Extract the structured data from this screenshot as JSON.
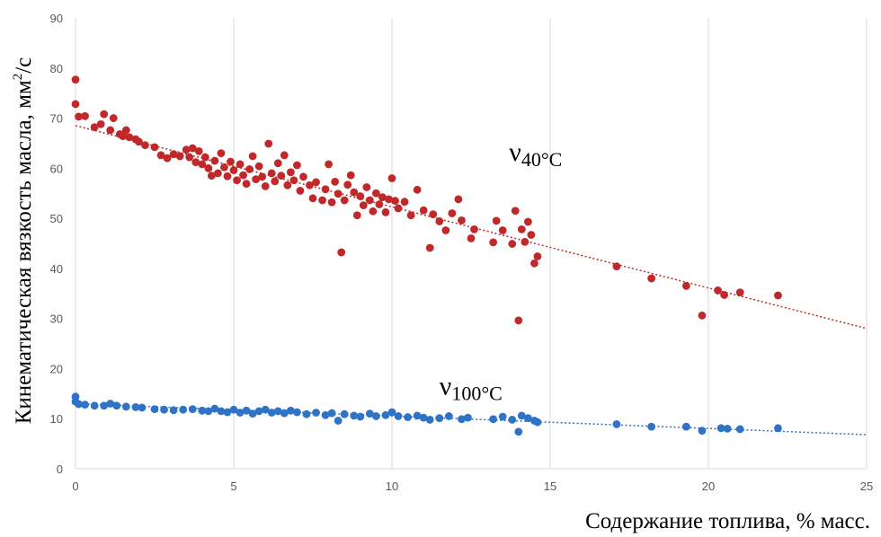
{
  "chart_data": {
    "type": "scatter",
    "title": "",
    "xlabel": "Содержание топлива, % масс.",
    "ylabel_main": "Кинематическая вязкость масла, мм",
    "ylabel_sup": "2",
    "ylabel_tail": "/с",
    "xlim": [
      0,
      25
    ],
    "ylim": [
      0,
      90
    ],
    "x_ticks": [
      0,
      5,
      10,
      15,
      20,
      25
    ],
    "y_ticks": [
      0,
      10,
      20,
      30,
      40,
      50,
      60,
      70,
      80,
      90
    ],
    "grid": "vertical",
    "series": [
      {
        "name": "v40",
        "label_main": "ν",
        "label_sub": "40°C",
        "color": "#c0282a",
        "trendline": {
          "x": [
            0,
            25
          ],
          "y": [
            68.5,
            28.0
          ]
        },
        "points": [
          [
            0.0,
            77.7
          ],
          [
            0.0,
            72.8
          ],
          [
            0.1,
            70.3
          ],
          [
            0.3,
            70.4
          ],
          [
            0.6,
            68.2
          ],
          [
            0.8,
            68.8
          ],
          [
            0.9,
            70.8
          ],
          [
            1.1,
            67.6
          ],
          [
            1.2,
            70.0
          ],
          [
            1.4,
            66.8
          ],
          [
            1.5,
            66.4
          ],
          [
            1.6,
            67.6
          ],
          [
            1.7,
            66.2
          ],
          [
            1.9,
            65.8
          ],
          [
            2.0,
            65.3
          ],
          [
            2.2,
            64.6
          ],
          [
            2.5,
            64.2
          ],
          [
            2.7,
            62.6
          ],
          [
            2.9,
            62.0
          ],
          [
            3.1,
            62.8
          ],
          [
            3.3,
            62.4
          ],
          [
            3.5,
            63.7
          ],
          [
            3.6,
            62.2
          ],
          [
            3.7,
            64.0
          ],
          [
            3.8,
            61.2
          ],
          [
            3.9,
            63.4
          ],
          [
            4.0,
            60.8
          ],
          [
            4.1,
            62.2
          ],
          [
            4.2,
            60.0
          ],
          [
            4.3,
            58.5
          ],
          [
            4.4,
            61.5
          ],
          [
            4.5,
            59.0
          ],
          [
            4.6,
            63.0
          ],
          [
            4.7,
            60.2
          ],
          [
            4.8,
            58.4
          ],
          [
            4.9,
            61.3
          ],
          [
            5.0,
            59.6
          ],
          [
            5.1,
            57.6
          ],
          [
            5.2,
            60.8
          ],
          [
            5.3,
            58.6
          ],
          [
            5.4,
            56.9
          ],
          [
            5.5,
            59.8
          ],
          [
            5.6,
            62.4
          ],
          [
            5.7,
            57.8
          ],
          [
            5.8,
            60.4
          ],
          [
            5.9,
            58.3
          ],
          [
            6.0,
            56.4
          ],
          [
            6.1,
            64.9
          ],
          [
            6.2,
            59.0
          ],
          [
            6.3,
            57.4
          ],
          [
            6.4,
            61.0
          ],
          [
            6.5,
            58.5
          ],
          [
            6.6,
            62.6
          ],
          [
            6.7,
            56.6
          ],
          [
            6.8,
            59.2
          ],
          [
            6.9,
            57.6
          ],
          [
            7.0,
            60.6
          ],
          [
            7.1,
            55.5
          ],
          [
            7.2,
            58.3
          ],
          [
            7.4,
            56.6
          ],
          [
            7.5,
            54.0
          ],
          [
            7.6,
            57.2
          ],
          [
            7.8,
            53.6
          ],
          [
            7.9,
            55.8
          ],
          [
            8.0,
            60.8
          ],
          [
            8.1,
            53.2
          ],
          [
            8.2,
            57.3
          ],
          [
            8.3,
            54.9
          ],
          [
            8.4,
            43.2
          ],
          [
            8.5,
            53.6
          ],
          [
            8.6,
            56.7
          ],
          [
            8.7,
            58.6
          ],
          [
            8.8,
            55.2
          ],
          [
            8.9,
            50.6
          ],
          [
            9.0,
            54.4
          ],
          [
            9.1,
            52.6
          ],
          [
            9.2,
            56.2
          ],
          [
            9.3,
            53.6
          ],
          [
            9.4,
            51.4
          ],
          [
            9.5,
            55.0
          ],
          [
            9.6,
            52.8
          ],
          [
            9.7,
            54.2
          ],
          [
            9.8,
            51.2
          ],
          [
            9.9,
            53.8
          ],
          [
            10.0,
            58.0
          ],
          [
            10.1,
            53.5
          ],
          [
            10.2,
            52.0
          ],
          [
            10.4,
            53.3
          ],
          [
            10.6,
            50.6
          ],
          [
            10.8,
            55.7
          ],
          [
            11.0,
            51.6
          ],
          [
            11.2,
            44.1
          ],
          [
            11.3,
            50.8
          ],
          [
            11.5,
            49.4
          ],
          [
            11.7,
            47.6
          ],
          [
            11.9,
            51.0
          ],
          [
            12.1,
            53.8
          ],
          [
            12.2,
            49.6
          ],
          [
            12.5,
            46.0
          ],
          [
            12.6,
            47.8
          ],
          [
            13.2,
            45.2
          ],
          [
            13.3,
            49.5
          ],
          [
            13.5,
            47.6
          ],
          [
            13.8,
            44.9
          ],
          [
            13.9,
            51.5
          ],
          [
            14.0,
            29.6
          ],
          [
            14.1,
            47.8
          ],
          [
            14.2,
            45.3
          ],
          [
            14.3,
            49.3
          ],
          [
            14.4,
            46.7
          ],
          [
            14.5,
            41.0
          ],
          [
            14.6,
            42.4
          ],
          [
            17.1,
            40.4
          ],
          [
            18.2,
            38.0
          ],
          [
            19.3,
            36.5
          ],
          [
            19.8,
            30.6
          ],
          [
            20.3,
            35.6
          ],
          [
            20.5,
            34.7
          ],
          [
            21.0,
            35.2
          ],
          [
            22.2,
            34.6
          ]
        ]
      },
      {
        "name": "v100",
        "label_main": "ν",
        "label_sub": "100°C",
        "color": "#2e73c5",
        "trendline": {
          "x": [
            0,
            25
          ],
          "y": [
            13.0,
            6.8
          ]
        },
        "points": [
          [
            0.0,
            14.4
          ],
          [
            0.0,
            13.4
          ],
          [
            0.1,
            12.9
          ],
          [
            0.3,
            12.8
          ],
          [
            0.6,
            12.6
          ],
          [
            0.9,
            12.6
          ],
          [
            1.1,
            13.0
          ],
          [
            1.3,
            12.6
          ],
          [
            1.6,
            12.4
          ],
          [
            1.9,
            12.3
          ],
          [
            2.1,
            12.2
          ],
          [
            2.5,
            11.9
          ],
          [
            2.8,
            11.8
          ],
          [
            3.1,
            11.7
          ],
          [
            3.4,
            11.8
          ],
          [
            3.7,
            11.9
          ],
          [
            4.0,
            11.6
          ],
          [
            4.2,
            11.5
          ],
          [
            4.4,
            12.0
          ],
          [
            4.6,
            11.5
          ],
          [
            4.8,
            11.3
          ],
          [
            5.0,
            11.8
          ],
          [
            5.2,
            11.2
          ],
          [
            5.4,
            11.6
          ],
          [
            5.6,
            11.0
          ],
          [
            5.8,
            11.5
          ],
          [
            6.0,
            11.8
          ],
          [
            6.2,
            11.2
          ],
          [
            6.4,
            11.5
          ],
          [
            6.6,
            11.1
          ],
          [
            6.8,
            11.6
          ],
          [
            7.0,
            11.3
          ],
          [
            7.3,
            10.9
          ],
          [
            7.6,
            11.2
          ],
          [
            7.9,
            10.7
          ],
          [
            8.1,
            11.1
          ],
          [
            8.3,
            9.6
          ],
          [
            8.5,
            10.9
          ],
          [
            8.8,
            10.6
          ],
          [
            9.0,
            10.4
          ],
          [
            9.3,
            11.0
          ],
          [
            9.5,
            10.5
          ],
          [
            9.8,
            10.7
          ],
          [
            10.0,
            11.3
          ],
          [
            10.2,
            10.5
          ],
          [
            10.5,
            10.3
          ],
          [
            10.8,
            10.6
          ],
          [
            11.0,
            10.2
          ],
          [
            11.2,
            9.8
          ],
          [
            11.5,
            10.1
          ],
          [
            11.8,
            10.5
          ],
          [
            12.2,
            9.9
          ],
          [
            12.4,
            10.2
          ],
          [
            13.2,
            9.9
          ],
          [
            13.5,
            10.4
          ],
          [
            13.8,
            9.8
          ],
          [
            14.0,
            7.4
          ],
          [
            14.1,
            10.6
          ],
          [
            14.3,
            10.1
          ],
          [
            14.5,
            9.6
          ],
          [
            14.6,
            9.3
          ],
          [
            17.1,
            8.9
          ],
          [
            18.2,
            8.4
          ],
          [
            19.3,
            8.4
          ],
          [
            19.8,
            7.6
          ],
          [
            20.4,
            8.1
          ],
          [
            20.6,
            8.0
          ],
          [
            21.0,
            7.9
          ],
          [
            22.2,
            8.1
          ]
        ]
      }
    ]
  }
}
